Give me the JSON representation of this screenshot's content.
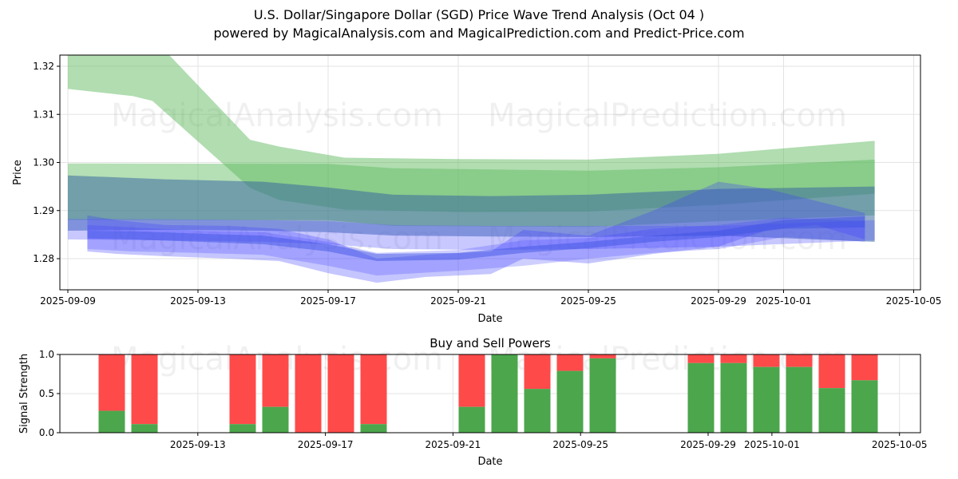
{
  "header": {
    "title": "U.S. Dollar/Singapore Dollar (SGD) Price Wave Trend Analysis (Oct 04 )",
    "subtitle": "powered by MagicalAnalysis.com and MagicalPrediction.com and Predict-Price.com"
  },
  "watermarks": [
    "MagicalAnalysis.com",
    "MagicalPrediction.com"
  ],
  "chart_data": [
    {
      "type": "area",
      "title": "",
      "xlabel": "Date",
      "ylabel": "Price",
      "ylim": [
        1.2735,
        1.3225
      ],
      "xlim": [
        "2025-09-09",
        "2025-10-05"
      ],
      "yticks": [
        "1.28",
        "1.29",
        "1.30",
        "1.31",
        "1.32"
      ],
      "ytick_values": [
        1.28,
        1.29,
        1.3,
        1.31,
        1.32
      ],
      "xticks": [
        "2025-09-09",
        "2025-09-13",
        "2025-09-17",
        "2025-09-21",
        "2025-09-25",
        "2025-09-29",
        "2025-10-01",
        "2025-10-05"
      ],
      "grid": true,
      "bands": [
        {
          "color": "#5cb85c",
          "opacity": 0.48,
          "x": [
            0,
            2,
            2.6,
            5.6,
            6.5,
            8.5,
            12,
            16,
            20,
            24.8
          ],
          "upper": [
            1.326,
            1.326,
            1.326,
            1.3047,
            1.3033,
            1.301,
            1.3007,
            1.3006,
            1.3018,
            1.3045
          ],
          "lower": [
            1.3153,
            1.3138,
            1.3128,
            1.2947,
            1.2922,
            1.2902,
            1.2897,
            1.2898,
            1.2912,
            1.2935
          ]
        },
        {
          "color": "#5cb85c",
          "opacity": 0.45,
          "x": [
            0,
            8,
            10,
            16,
            20,
            24.8
          ],
          "upper": [
            1.2998,
            1.2997,
            1.2988,
            1.2983,
            1.299,
            1.3006
          ],
          "lower": [
            1.288,
            1.288,
            1.2868,
            1.2866,
            1.2878,
            1.289
          ]
        },
        {
          "color": "#3a6aa0",
          "opacity": 0.55,
          "x": [
            0,
            3,
            6,
            8,
            10,
            13,
            16,
            20,
            24.8
          ],
          "upper": [
            1.2973,
            1.2965,
            1.296,
            1.2948,
            1.2933,
            1.293,
            1.2933,
            1.2945,
            1.295
          ],
          "lower": [
            1.2858,
            1.286,
            1.2858,
            1.2855,
            1.2848,
            1.2846,
            1.2845,
            1.2848,
            1.2835
          ]
        },
        {
          "color": "#6060ff",
          "opacity": 0.35,
          "x": [
            0,
            3,
            6,
            8,
            10,
            13,
            16,
            20,
            24.8
          ],
          "upper": [
            1.2883,
            1.2882,
            1.288,
            1.2878,
            1.287,
            1.2868,
            1.2868,
            1.2868,
            1.288
          ],
          "lower": [
            1.284,
            1.2838,
            1.2835,
            1.283,
            1.282,
            1.2818,
            1.282,
            1.2825,
            1.2838
          ]
        },
        {
          "color": "#4040ff",
          "opacity": 0.3,
          "x": [
            0.6,
            1.5,
            3,
            5,
            6.5,
            8,
            9.5,
            11,
            13,
            14,
            16,
            18,
            20,
            21.5,
            23,
            24.5
          ],
          "upper": [
            1.289,
            1.288,
            1.287,
            1.2868,
            1.2862,
            1.284,
            1.28,
            1.2808,
            1.2815,
            1.286,
            1.2848,
            1.29,
            1.296,
            1.2945,
            1.292,
            1.2895
          ],
          "lower": [
            1.2815,
            1.281,
            1.2805,
            1.28,
            1.2795,
            1.277,
            1.275,
            1.2762,
            1.2768,
            1.28,
            1.279,
            1.281,
            1.2825,
            1.286,
            1.287,
            1.284
          ]
        },
        {
          "color": "#4040ff",
          "opacity": 0.25,
          "x": [
            0.6,
            2,
            4,
            6,
            8,
            9.5,
            12,
            14,
            16,
            18,
            20,
            22,
            24.5
          ],
          "upper": [
            1.287,
            1.2865,
            1.2858,
            1.2855,
            1.2835,
            1.2812,
            1.2818,
            1.2838,
            1.2843,
            1.2862,
            1.287,
            1.2885,
            1.2878
          ],
          "lower": [
            1.282,
            1.2815,
            1.2812,
            1.2808,
            1.2785,
            1.2765,
            1.2775,
            1.2785,
            1.28,
            1.2812,
            1.282,
            1.2845,
            1.2835
          ]
        },
        {
          "color": "#3a4fe0",
          "opacity": 0.45,
          "x": [
            0.6,
            2,
            4,
            6,
            8,
            9.5,
            12,
            14,
            16,
            18,
            20,
            22,
            24.5
          ],
          "upper": [
            1.2858,
            1.2857,
            1.2852,
            1.2848,
            1.283,
            1.281,
            1.2812,
            1.2825,
            1.2835,
            1.2848,
            1.2858,
            1.288,
            1.2888
          ],
          "lower": [
            1.2842,
            1.284,
            1.2835,
            1.283,
            1.2815,
            1.2795,
            1.2798,
            1.2812,
            1.2822,
            1.2835,
            1.2845,
            1.2862,
            1.2865
          ]
        }
      ]
    },
    {
      "type": "bar",
      "title": "Buy and Sell Powers",
      "xlabel": "Date",
      "ylabel": "Signal Strength",
      "ylim": [
        0,
        1
      ],
      "yticks": [
        "0.0",
        "0.5",
        "1.0"
      ],
      "ytick_values": [
        0,
        0.5,
        1.0
      ],
      "xticks": [
        "2025-09-13",
        "2025-09-17",
        "2025-09-21",
        "2025-09-25",
        "2025-09-29",
        "2025-10-01",
        "2025-10-05"
      ],
      "buy_color": "#4ca64c",
      "sell_color": "#ff4a4a",
      "bar_days": [
        1,
        2,
        5,
        6,
        7,
        8,
        9,
        12,
        13,
        14,
        15,
        16,
        19,
        20,
        21,
        22,
        23,
        24
      ],
      "buy": [
        0.28,
        0.11,
        0.11,
        0.33,
        0.0,
        0.0,
        0.11,
        0.33,
        1.0,
        0.56,
        0.79,
        0.95,
        0.89,
        0.89,
        0.84,
        0.84,
        0.57,
        0.67
      ]
    }
  ]
}
